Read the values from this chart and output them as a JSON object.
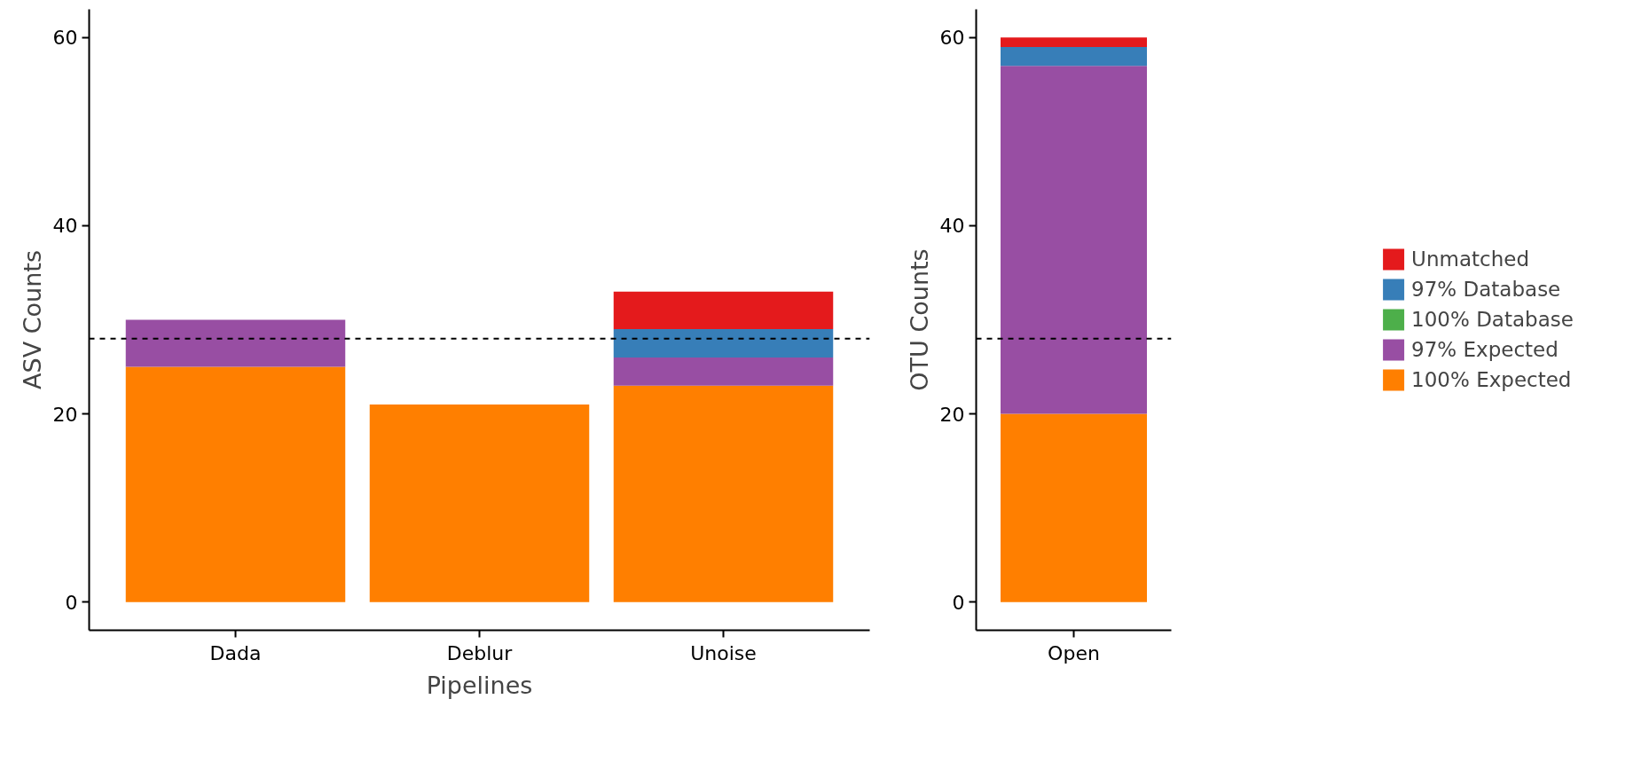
{
  "chart_data": [
    {
      "type": "bar",
      "stacked": true,
      "xlabel": "Pipelines",
      "ylabel": "ASV Counts",
      "categories": [
        "Dada",
        "Deblur",
        "Unoise"
      ],
      "ylim": [
        -3,
        63
      ],
      "yticks": [
        0,
        20,
        40,
        60
      ],
      "grid": false,
      "legend": false,
      "series": [
        {
          "color": "#ff7f00",
          "values": [
            25,
            21,
            23
          ]
        },
        {
          "color": "#984ea3",
          "values": [
            5,
            0,
            3
          ]
        },
        {
          "color": "#4daf4a",
          "values": [
            0,
            0,
            0
          ]
        },
        {
          "color": "#377eb8",
          "values": [
            0,
            0,
            3
          ]
        },
        {
          "color": "#e41a1c",
          "values": [
            0,
            0,
            4
          ]
        }
      ],
      "ref_lines": [
        {
          "axis": "y",
          "value": 28,
          "line_style": "dashed",
          "color": "#000000"
        }
      ]
    },
    {
      "type": "bar",
      "stacked": true,
      "ylabel": "OTU Counts",
      "categories": [
        "Open"
      ],
      "ylim": [
        -3,
        63
      ],
      "yticks": [
        0,
        20,
        40,
        60
      ],
      "grid": false,
      "legend": "right",
      "series": [
        {
          "name": "100% Expected",
          "color": "#ff7f00",
          "values": [
            20
          ]
        },
        {
          "name": "97% Expected",
          "color": "#984ea3",
          "values": [
            37
          ]
        },
        {
          "name": "100% Database",
          "color": "#4daf4a",
          "values": [
            0
          ]
        },
        {
          "name": "97% Database",
          "color": "#377eb8",
          "values": [
            2
          ]
        },
        {
          "name": "Unmatched",
          "color": "#e41a1c",
          "values": [
            1
          ]
        }
      ],
      "ref_lines": [
        {
          "axis": "y",
          "value": 28,
          "line_style": "dashed",
          "color": "#000000"
        }
      ]
    }
  ]
}
